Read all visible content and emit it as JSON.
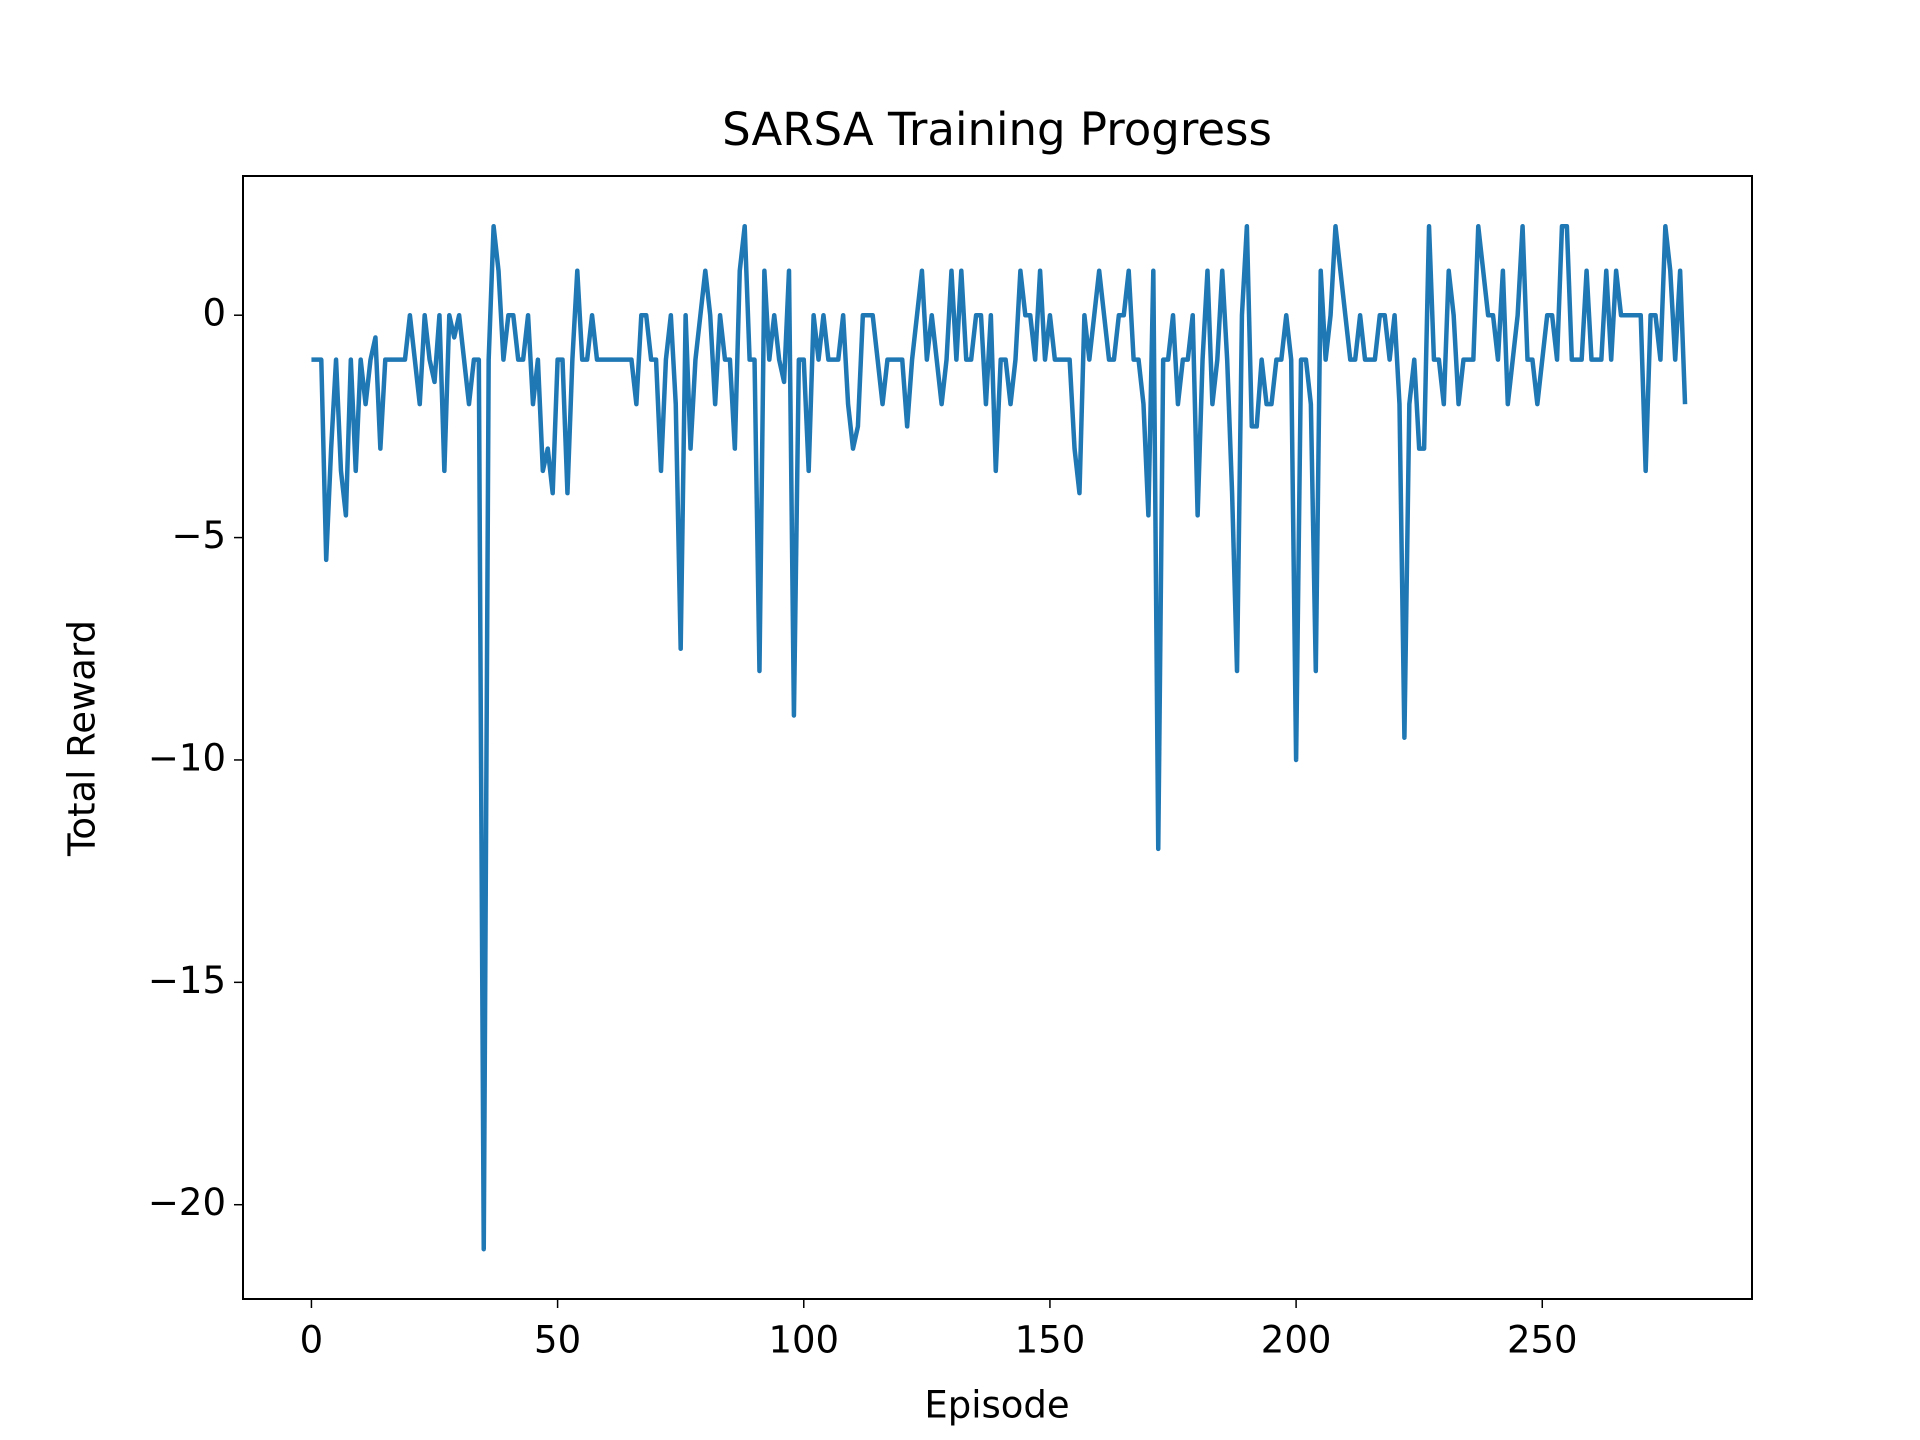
{
  "chart_data": {
    "type": "line",
    "title": "SARSA Training Progress",
    "xlabel": "Episode",
    "ylabel": "Total Reward",
    "xlim": [
      -13.9,
      292.6
    ],
    "ylim": [
      -22.12,
      3.13
    ],
    "xticks": [
      0,
      50,
      100,
      150,
      200,
      250
    ],
    "yticks": [
      {
        "value": -20,
        "label": "−20"
      },
      {
        "value": -15,
        "label": "−15"
      },
      {
        "value": -10,
        "label": "−10"
      },
      {
        "value": -5,
        "label": "−5"
      },
      0
    ],
    "x": [
      0,
      1,
      2,
      3,
      4,
      5,
      6,
      7,
      8,
      9,
      10,
      11,
      12,
      13,
      14,
      15,
      16,
      17,
      18,
      19,
      20,
      21,
      22,
      23,
      24,
      25,
      26,
      27,
      28,
      29,
      30,
      31,
      32,
      33,
      34,
      35,
      36,
      37,
      38,
      39,
      40,
      41,
      42,
      43,
      44,
      45,
      46,
      47,
      48,
      49,
      50,
      51,
      52,
      53,
      54,
      55,
      56,
      57,
      58,
      59,
      60,
      61,
      62,
      63,
      64,
      65,
      66,
      67,
      68,
      69,
      70,
      71,
      72,
      73,
      74,
      75,
      76,
      77,
      78,
      79,
      80,
      81,
      82,
      83,
      84,
      85,
      86,
      87,
      88,
      89,
      90,
      91,
      92,
      93,
      94,
      95,
      96,
      97,
      98,
      99,
      100,
      101,
      102,
      103,
      104,
      105,
      106,
      107,
      108,
      109,
      110,
      111,
      112,
      113,
      114,
      115,
      116,
      117,
      118,
      119,
      120,
      121,
      122,
      123,
      124,
      125,
      126,
      127,
      128,
      129,
      130,
      131,
      132,
      133,
      134,
      135,
      136,
      137,
      138,
      139,
      140,
      141,
      142,
      143,
      144,
      145,
      146,
      147,
      148,
      149,
      150,
      151,
      152,
      153,
      154,
      155,
      156,
      157,
      158,
      159,
      160,
      161,
      162,
      163,
      164,
      165,
      166,
      167,
      168,
      169,
      170,
      171,
      172,
      173,
      174,
      175,
      176,
      177,
      178,
      179,
      180,
      181,
      182,
      183,
      184,
      185,
      186,
      187,
      188,
      189,
      190,
      191,
      192,
      193,
      194,
      195,
      196,
      197,
      198,
      199,
      200,
      201,
      202,
      203,
      204,
      205,
      206,
      207,
      208,
      209,
      210,
      211,
      212,
      213,
      214,
      215,
      216,
      217,
      218,
      219,
      220,
      221,
      222,
      223,
      224,
      225,
      226,
      227,
      228,
      229,
      230,
      231,
      232,
      233,
      234,
      235,
      236,
      237,
      238,
      239,
      240,
      241,
      242,
      243,
      244,
      245,
      246,
      247,
      248,
      249,
      250,
      251,
      252,
      253,
      254,
      255,
      256,
      257,
      258,
      259,
      260,
      261,
      262,
      263,
      264,
      265,
      266,
      267,
      268,
      269,
      270,
      271,
      272,
      273,
      274,
      275,
      276,
      277,
      278,
      279
    ],
    "series": [
      {
        "name": "Total Reward",
        "color": "#1f77b4",
        "values": [
          -1,
          -1,
          -1,
          -5.5,
          -3,
          -1,
          -3.5,
          -4.5,
          -1,
          -3.5,
          -1,
          -2,
          -1,
          -0.5,
          -3,
          -1,
          -1,
          -1,
          -1,
          -1,
          0,
          -1,
          -2,
          0,
          -1,
          -1.5,
          0,
          -3.5,
          0,
          -0.5,
          0,
          -1,
          -2,
          -1,
          -1,
          -21,
          -1,
          2,
          1,
          -1,
          0,
          0,
          -1,
          -1,
          0,
          -2,
          -1,
          -3.5,
          -3,
          -4,
          -1,
          -1,
          -4,
          -1,
          1,
          -1,
          -1,
          0,
          -1,
          -1,
          -1,
          -1,
          -1,
          -1,
          -1,
          -1,
          -2,
          0,
          0,
          -1,
          -1,
          -3.5,
          -1,
          0,
          -2,
          -7.5,
          0,
          -3,
          -1,
          0,
          1,
          0,
          -2,
          0,
          -1,
          -1,
          -3,
          1,
          2,
          -1,
          -1,
          -8,
          1,
          -1,
          0,
          -1,
          -1.5,
          1,
          -9,
          -1,
          -1,
          -3.5,
          0,
          -1,
          0,
          -1,
          -1,
          -1,
          0,
          -2,
          -3,
          -2.5,
          0,
          0,
          0,
          -1,
          -2,
          -1,
          -1,
          -1,
          -1,
          -2.5,
          -1,
          0,
          1,
          -1,
          0,
          -1,
          -2,
          -1,
          1,
          -1,
          1,
          -1,
          -1,
          0,
          0,
          -2,
          0,
          -3.5,
          -1,
          -1,
          -2,
          -1,
          1,
          0,
          0,
          -1,
          1,
          -1,
          0,
          -1,
          -1,
          -1,
          -1,
          -3,
          -4,
          0,
          -1,
          0,
          1,
          0,
          -1,
          -1,
          0,
          0,
          1,
          -1,
          -1,
          -2,
          -4.5,
          1,
          -12,
          -1,
          -1,
          0,
          -2,
          -1,
          -1,
          0,
          -4.5,
          -1,
          1,
          -2,
          -1,
          1,
          -1,
          -4,
          -8,
          0,
          2,
          -2.5,
          -2.5,
          -1,
          -2,
          -2,
          -1,
          -1,
          0,
          -1,
          -10,
          -1,
          -1,
          -2,
          -8,
          1,
          -1,
          0,
          2,
          1,
          0,
          -1,
          -1,
          0,
          -1,
          -1,
          -1,
          0,
          0,
          -1,
          0,
          -2,
          -9.5,
          -2,
          -1,
          -3,
          -3,
          2,
          -1,
          -1,
          -2,
          1,
          0,
          -2,
          -1,
          -1,
          -1,
          2,
          1,
          0,
          0,
          -1,
          1,
          -2,
          -1,
          0,
          2,
          -1,
          -1,
          -2,
          -1,
          0,
          0,
          -1,
          2,
          2,
          -1,
          -1,
          -1,
          1,
          -1,
          -1,
          -1,
          1,
          -1,
          1,
          0,
          0,
          0,
          0,
          0,
          -3.5,
          0,
          0,
          -1,
          2,
          1,
          -1,
          1,
          -2
        ]
      }
    ]
  }
}
